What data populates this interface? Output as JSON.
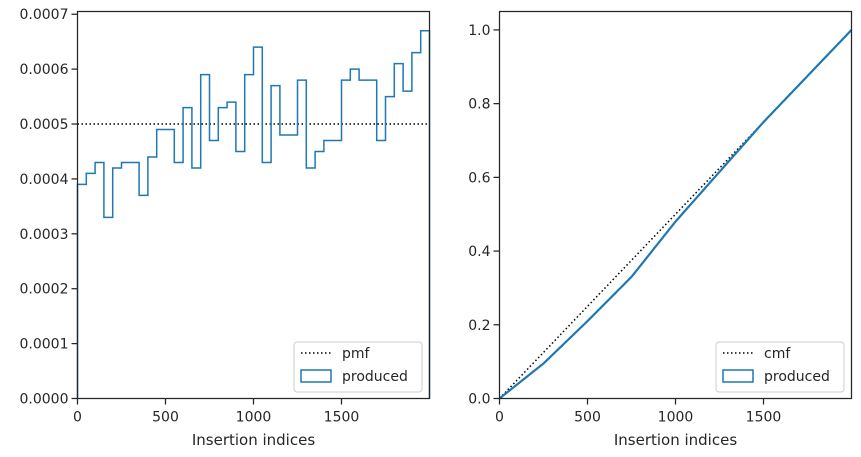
{
  "chart_data": [
    {
      "type": "histogram-step",
      "title": "",
      "xlabel": "Insertion indices",
      "ylabel": "",
      "xlim": [
        0,
        2000
      ],
      "ylim": [
        0,
        0.000705
      ],
      "x_ticks": [
        0,
        500,
        1000,
        1500
      ],
      "x_tick_labels": [
        "0",
        "500",
        "1000",
        "1500"
      ],
      "y_ticks": [
        0,
        0.0001,
        0.0002,
        0.0003,
        0.0004,
        0.0005,
        0.0006,
        0.0007
      ],
      "y_tick_labels": [
        "0.0000",
        "0.0001",
        "0.0002",
        "0.0003",
        "0.0004",
        "0.0005",
        "0.0006",
        "0.0007"
      ],
      "bin_width": 50,
      "bin_starts": [
        0,
        50,
        100,
        150,
        200,
        250,
        300,
        350,
        400,
        450,
        500,
        550,
        600,
        650,
        700,
        750,
        800,
        850,
        900,
        950,
        1000,
        1050,
        1100,
        1150,
        1200,
        1250,
        1300,
        1350,
        1400,
        1450,
        1500,
        1550,
        1600,
        1650,
        1700,
        1750,
        1800,
        1850,
        1900,
        1950
      ],
      "series": [
        {
          "name": "produced",
          "style": "step",
          "color": "#1f77b4",
          "values": [
            0.00039,
            0.00041,
            0.00043,
            0.00033,
            0.00042,
            0.00043,
            0.00043,
            0.00037,
            0.00044,
            0.00049,
            0.00049,
            0.00043,
            0.00053,
            0.00042,
            0.00059,
            0.00047,
            0.00053,
            0.00054,
            0.00045,
            0.00059,
            0.00064,
            0.00043,
            0.00057,
            0.00048,
            0.00048,
            0.00058,
            0.00042,
            0.00045,
            0.00047,
            0.00047,
            0.00058,
            0.0006,
            0.00058,
            0.00058,
            0.00047,
            0.00055,
            0.00061,
            0.00056,
            0.00063,
            0.00067
          ]
        },
        {
          "name": "pmf",
          "style": "dotted",
          "color": "#000000",
          "value": 0.0005
        }
      ],
      "legend": {
        "placement": "lower-right",
        "entries": [
          "pmf",
          "produced"
        ]
      },
      "grid": false
    },
    {
      "type": "line",
      "title": "",
      "xlabel": "Insertion indices",
      "ylabel": "",
      "xlim": [
        0,
        2000
      ],
      "ylim": [
        0,
        1.05
      ],
      "x_ticks": [
        0,
        500,
        1000,
        1500
      ],
      "x_tick_labels": [
        "0",
        "500",
        "1000",
        "1500"
      ],
      "y_ticks": [
        0,
        0.2,
        0.4,
        0.6,
        0.8,
        1.0
      ],
      "y_tick_labels": [
        "0.0",
        "0.2",
        "0.4",
        "0.6",
        "0.8",
        "1.0"
      ],
      "series": [
        {
          "name": "cmf",
          "style": "dotted",
          "color": "#000000",
          "x": [
            0,
            2000
          ],
          "y": [
            0,
            1.0
          ]
        },
        {
          "name": "produced",
          "style": "solid",
          "color": "#1f77b4",
          "x": [
            0,
            250,
            500,
            750,
            1000,
            1250,
            1500,
            1750,
            2000
          ],
          "y": [
            0,
            0.095,
            0.21,
            0.33,
            0.48,
            0.615,
            0.75,
            0.875,
            1.0
          ]
        }
      ],
      "legend": {
        "placement": "lower-right",
        "entries": [
          "cmf",
          "produced"
        ]
      },
      "grid": false
    }
  ]
}
